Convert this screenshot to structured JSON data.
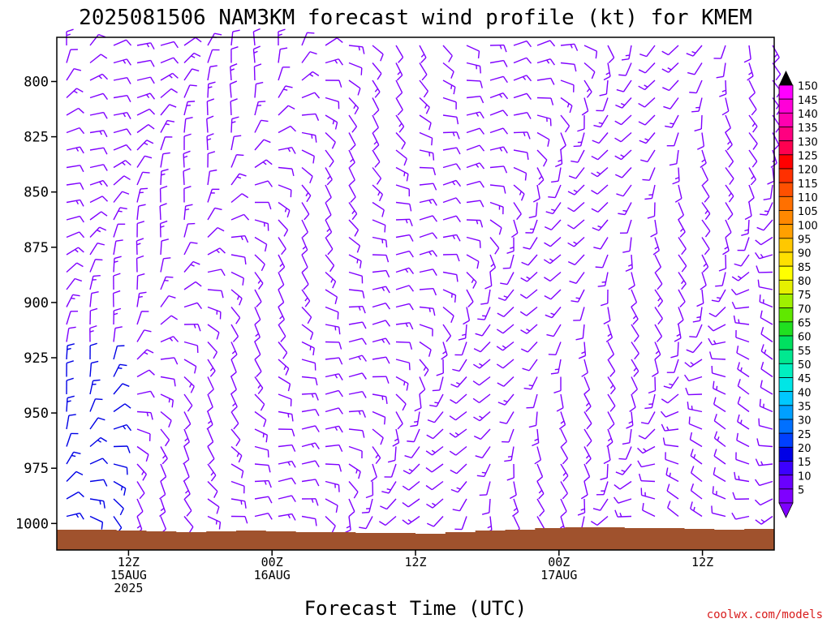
{
  "chart_data": {
    "type": "wind-barb-profile",
    "title": "2025081506 NAM3KM forecast wind profile (kt) for KMEM",
    "xlabel": "Forecast Time (UTC)",
    "y_ticks": [
      800,
      825,
      850,
      875,
      900,
      925,
      950,
      975,
      1000
    ],
    "ylim_hpa": [
      780,
      1012
    ],
    "x_ticks": [
      {
        "hour": 6,
        "lines": [
          "12Z",
          "15AUG",
          "2025"
        ]
      },
      {
        "hour": 18,
        "lines": [
          "00Z",
          "16AUG"
        ]
      },
      {
        "hour": 30,
        "lines": [
          "12Z"
        ]
      },
      {
        "hour": 42,
        "lines": [
          "00Z",
          "17AUG"
        ]
      },
      {
        "hour": 54,
        "lines": [
          "12Z"
        ]
      }
    ],
    "xlim_hours": [
      0,
      60
    ],
    "colorbar": {
      "values": [
        5,
        10,
        15,
        20,
        25,
        30,
        35,
        40,
        45,
        50,
        55,
        60,
        65,
        70,
        75,
        80,
        85,
        90,
        95,
        100,
        105,
        110,
        115,
        120,
        125,
        130,
        135,
        140,
        145,
        150
      ],
      "colors": [
        "#7f00ff",
        "#6a00ff",
        "#3c00ff",
        "#0000e6",
        "#0040ff",
        "#0070ff",
        "#00a0ff",
        "#00c8ff",
        "#00e6e6",
        "#00f0c0",
        "#00e890",
        "#00e060",
        "#20e020",
        "#60e800",
        "#a0f000",
        "#e6f000",
        "#ffff00",
        "#ffe000",
        "#ffc800",
        "#ffa000",
        "#ff8800",
        "#ff7000",
        "#ff5000",
        "#ff3000",
        "#ff0000",
        "#ff0050",
        "#ff0080",
        "#ff00b0",
        "#ff00d8",
        "#ff00ff"
      ]
    },
    "credit": "coolwx.com/models",
    "colors": {
      "terrain": "#a0522d",
      "barb_primary": "#7f00ff",
      "barb_secondary": "#0000e6"
    }
  }
}
